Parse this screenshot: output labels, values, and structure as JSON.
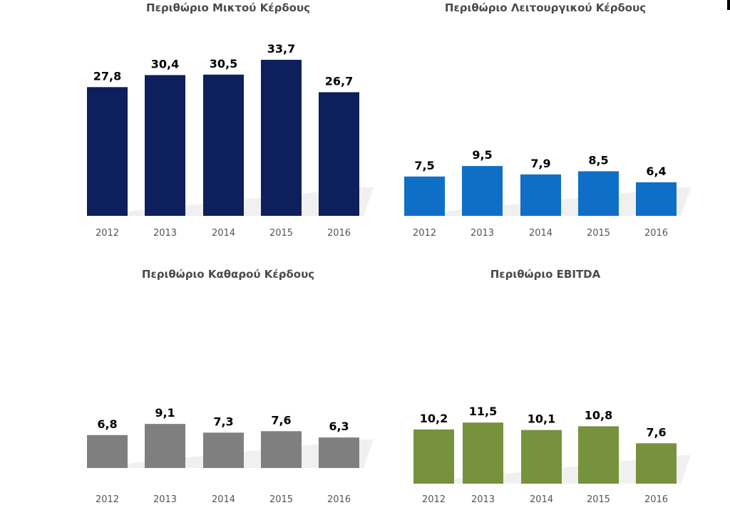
{
  "chart_data": [
    {
      "type": "bar",
      "title": "Περιθώριο Μικτού Κέρδους",
      "categories": [
        "2012",
        "2013",
        "2014",
        "2015",
        "2016"
      ],
      "values": [
        27.8,
        30.4,
        30.5,
        33.7,
        26.7
      ],
      "value_labels": [
        "27,8",
        "30,4",
        "30,5",
        "33,7",
        "26,7"
      ],
      "ylim": [
        0,
        35
      ],
      "color": "#0d1f5c",
      "grid": false
    },
    {
      "type": "bar",
      "title": "Περιθώριο Λειτουργικού Κέρδους",
      "categories": [
        "2012",
        "2013",
        "2014",
        "2015",
        "2016"
      ],
      "values": [
        7.5,
        9.5,
        7.9,
        8.5,
        6.4
      ],
      "value_labels": [
        "7,5",
        "9,5",
        "7,9",
        "8,5",
        "6,4"
      ],
      "ylim": [
        0,
        35
      ],
      "color": "#0f6fc6",
      "grid": false
    },
    {
      "type": "bar",
      "title": "Περιθώριο Καθαρού Κέρδους",
      "categories": [
        "2012",
        "2013",
        "2014",
        "2015",
        "2016"
      ],
      "values": [
        6.8,
        9.1,
        7.3,
        7.6,
        6.3
      ],
      "value_labels": [
        "6,8",
        "9,1",
        "7,3",
        "7,6",
        "6,3"
      ],
      "ylim": [
        0,
        35
      ],
      "color": "#7f7f7f",
      "grid": false
    },
    {
      "type": "bar",
      "title": "Περιθώριο EBITDA",
      "categories": [
        "2012",
        "2013",
        "2014",
        "2015",
        "2016"
      ],
      "values": [
        10.2,
        11.5,
        10.1,
        10.8,
        7.6
      ],
      "value_labels": [
        "10,2",
        "11,5",
        "10,1",
        "10,8",
        "7,6"
      ],
      "ylim": [
        0,
        35
      ],
      "color": "#76923c",
      "grid": false
    }
  ]
}
